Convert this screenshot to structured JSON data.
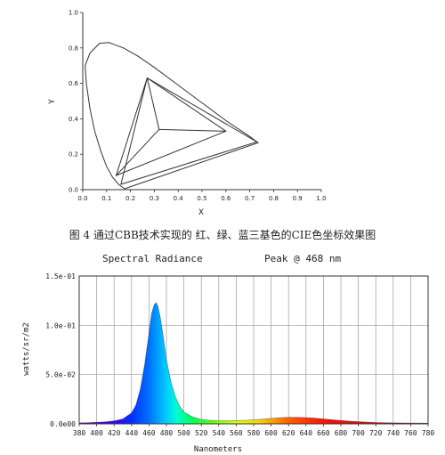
{
  "caption": "图 4 通过CBB技术实现的 红、绿、蓝三基色的CIE色坐标效果图",
  "chart_data": [
    {
      "type": "line",
      "subtype": "cie-chromaticity",
      "xlabel": "X",
      "ylabel": "Y",
      "xlim": [
        0,
        1.0
      ],
      "ylim": [
        0,
        1.0
      ],
      "xticks": [
        "0.0",
        "0.1",
        "0.2",
        "0.3",
        "0.4",
        "0.5",
        "0.6",
        "0.7",
        "0.8",
        "0.9",
        "1.0"
      ],
      "yticks": [
        "0.0",
        "0.2",
        "0.4",
        "0.6",
        "0.8",
        "1.0"
      ],
      "locus": [
        [
          0.175,
          0.005
        ],
        [
          0.15,
          0.03
        ],
        [
          0.125,
          0.07
        ],
        [
          0.1,
          0.13
        ],
        [
          0.075,
          0.22
        ],
        [
          0.05,
          0.33
        ],
        [
          0.03,
          0.46
        ],
        [
          0.015,
          0.6
        ],
        [
          0.01,
          0.7
        ],
        [
          0.03,
          0.77
        ],
        [
          0.07,
          0.826
        ],
        [
          0.11,
          0.83
        ],
        [
          0.17,
          0.8
        ],
        [
          0.23,
          0.755
        ],
        [
          0.3,
          0.69
        ],
        [
          0.4,
          0.59
        ],
        [
          0.5,
          0.49
        ],
        [
          0.6,
          0.39
        ],
        [
          0.7,
          0.3
        ],
        [
          0.735,
          0.265
        ],
        [
          0.175,
          0.005
        ]
      ],
      "triangles": [
        [
          [
            0.27,
            0.63
          ],
          [
            0.6,
            0.33
          ],
          [
            0.14,
            0.08
          ]
        ],
        [
          [
            0.27,
            0.63
          ],
          [
            0.73,
            0.27
          ],
          [
            0.16,
            0.03
          ]
        ]
      ],
      "center": [
        0.32,
        0.34
      ],
      "grid": false
    },
    {
      "type": "area",
      "title": "Spectral Radiance",
      "annotation": "Peak @ 468 nm",
      "xlabel": "Nanometers",
      "ylabel": "watts/sr/m2",
      "xlim": [
        380,
        780
      ],
      "ylim": [
        0,
        0.15
      ],
      "xticks": [
        "380",
        "400",
        "420",
        "440",
        "460",
        "480",
        "500",
        "520",
        "540",
        "560",
        "580",
        "600",
        "620",
        "640",
        "660",
        "680",
        "700",
        "720",
        "740",
        "760",
        "780"
      ],
      "yticks": [
        "0.0e00",
        "5.0e-02",
        "1.0e-01",
        "1.5e-01"
      ],
      "grid": true,
      "x": [
        380,
        390,
        400,
        410,
        420,
        430,
        440,
        445,
        450,
        455,
        460,
        463,
        466,
        468,
        470,
        473,
        476,
        480,
        485,
        490,
        495,
        500,
        510,
        520,
        530,
        540,
        550,
        560,
        570,
        580,
        590,
        600,
        610,
        620,
        630,
        640,
        650,
        660,
        670,
        680,
        690,
        700,
        710,
        720,
        740,
        760,
        780
      ],
      "y": [
        0.001,
        0.0012,
        0.0015,
        0.002,
        0.003,
        0.005,
        0.011,
        0.019,
        0.035,
        0.06,
        0.092,
        0.112,
        0.121,
        0.123,
        0.12,
        0.108,
        0.09,
        0.065,
        0.043,
        0.028,
        0.018,
        0.012,
        0.007,
        0.0045,
        0.0035,
        0.0032,
        0.0032,
        0.0033,
        0.0036,
        0.004,
        0.0047,
        0.0055,
        0.0062,
        0.0066,
        0.0066,
        0.0063,
        0.0058,
        0.005,
        0.0042,
        0.0034,
        0.0027,
        0.0022,
        0.0017,
        0.0014,
        0.001,
        0.0008,
        0.0007
      ]
    }
  ]
}
